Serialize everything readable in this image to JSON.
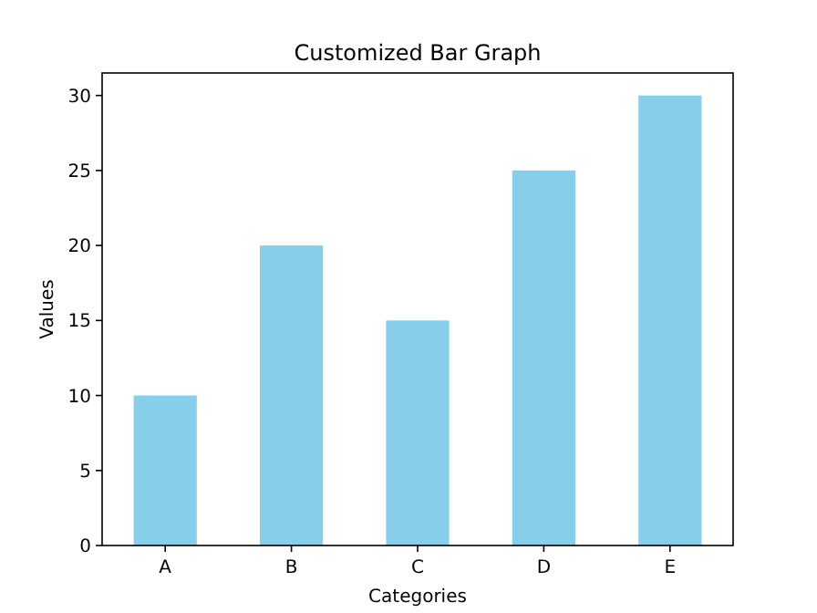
{
  "chart_data": {
    "type": "bar",
    "title": "Customized Bar Graph",
    "xlabel": "Categories",
    "ylabel": "Values",
    "categories": [
      "A",
      "B",
      "C",
      "D",
      "E"
    ],
    "values": [
      10,
      20,
      15,
      25,
      30
    ],
    "color": "#87ceeb",
    "ylim": [
      0,
      31.5
    ],
    "yticks": [
      0,
      5,
      10,
      15,
      20,
      25,
      30
    ]
  }
}
